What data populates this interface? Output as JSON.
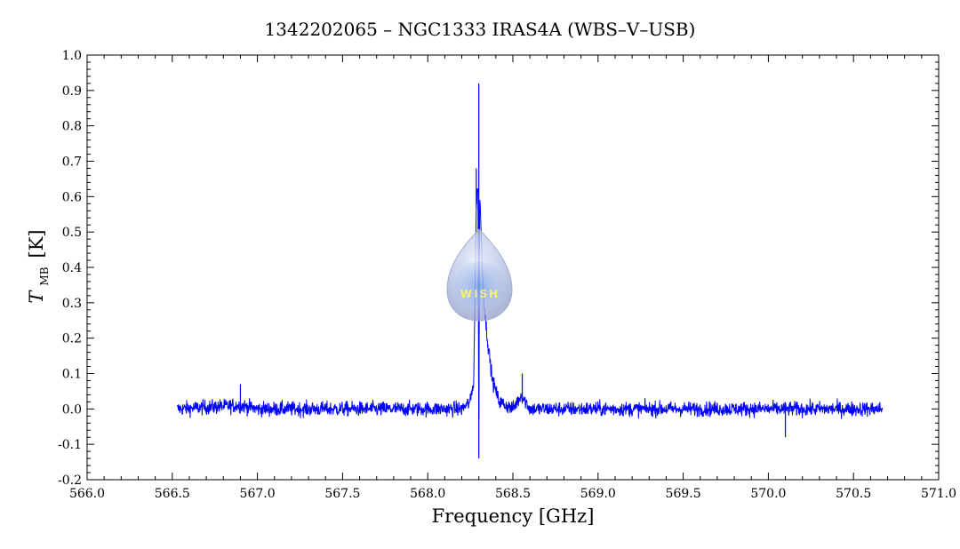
{
  "colors": {
    "series": "#0000ff",
    "axis": "#000000",
    "background": "#ffffff"
  },
  "logo": {
    "name": "wish-drop-logo",
    "text": "WISH"
  },
  "chart_data": {
    "type": "line",
    "title": "1342202065 – NGC1333 IRAS4A (WBS–V–USB)",
    "xlabel": "Frequency [GHz]",
    "ylabel_main": "T",
    "ylabel_sub": "MB",
    "ylabel_unit": "[K]",
    "xlim": [
      566.0,
      571.0
    ],
    "ylim": [
      -0.2,
      1.0
    ],
    "xticks": [
      "566.0",
      "566.5",
      "567.0",
      "567.5",
      "568.0",
      "568.5",
      "569.0",
      "569.5",
      "570.0",
      "570.5",
      "571.0"
    ],
    "yticks": [
      "-0.2",
      "-0.1",
      "0.0",
      "0.1",
      "0.2",
      "0.3",
      "0.4",
      "0.5",
      "0.6",
      "0.7",
      "0.8",
      "0.9",
      "1.0"
    ],
    "grid": false,
    "series": [
      {
        "noise_rms": 0.015,
        "x": [
          566.53,
          566.9,
          567.0,
          567.5,
          568.0,
          568.2,
          568.25,
          568.27,
          568.285,
          568.295,
          568.3,
          568.305,
          568.31,
          568.32,
          568.33,
          568.35,
          568.38,
          568.42,
          568.5,
          568.55,
          568.6,
          569.0,
          569.5,
          570.0,
          570.5,
          570.67
        ],
        "y": [
          0.0,
          0.01,
          0.0,
          0.0,
          0.0,
          0.0,
          0.02,
          0.08,
          0.57,
          0.65,
          -0.13,
          0.62,
          0.55,
          0.4,
          0.3,
          0.2,
          0.08,
          0.02,
          0.0,
          0.04,
          0.0,
          0.0,
          0.0,
          0.0,
          0.0,
          0.0
        ]
      }
    ],
    "features": [
      {
        "x": 568.3,
        "y": 0.92
      },
      {
        "x": 568.3,
        "y": -0.14
      },
      {
        "x": 568.285,
        "y": 0.68
      },
      {
        "x": 568.555,
        "y": 0.1
      },
      {
        "x": 566.9,
        "y": 0.07
      },
      {
        "x": 570.1,
        "y": -0.08
      }
    ]
  }
}
